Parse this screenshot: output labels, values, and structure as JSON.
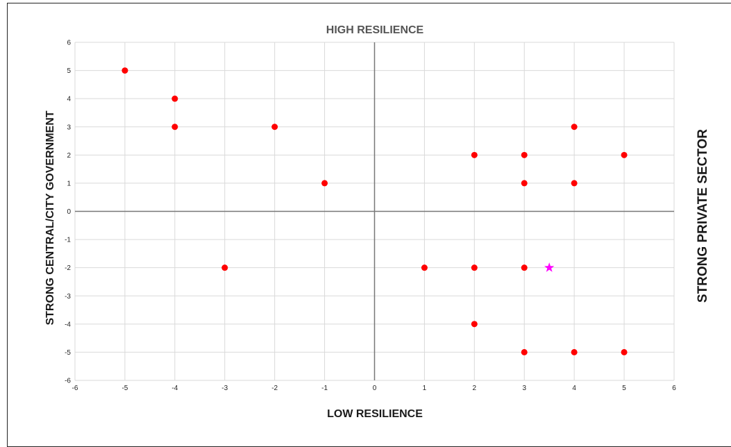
{
  "chart_data": {
    "type": "scatter",
    "title": "HIGH RESILIENCE",
    "xlabel": "LOW RESILIENCE",
    "ylabel": "STRONG CENTRAL/CITY GOVERNMENT",
    "right_label": "STRONG PRIVATE SECTOR",
    "xlim": [
      -6,
      6
    ],
    "ylim": [
      -6,
      6
    ],
    "x_ticks": [
      "-6",
      "-5",
      "-4",
      "-3",
      "-2",
      "-1",
      "0",
      "1",
      "2",
      "3",
      "4",
      "5",
      "6"
    ],
    "y_ticks": [
      "6",
      "5",
      "4",
      "3",
      "2",
      "1",
      "0",
      "-1",
      "-2",
      "-3",
      "-4",
      "-5",
      "-6"
    ],
    "grid": true,
    "series": [
      {
        "marker": "circle",
        "color": "#ff0000",
        "points": [
          {
            "x": -5,
            "y": 5
          },
          {
            "x": -4,
            "y": 4
          },
          {
            "x": -4,
            "y": 3
          },
          {
            "x": -2,
            "y": 3
          },
          {
            "x": -1,
            "y": 1
          },
          {
            "x": -3,
            "y": -2
          },
          {
            "x": 2,
            "y": 2
          },
          {
            "x": 3,
            "y": 2
          },
          {
            "x": 4,
            "y": 3
          },
          {
            "x": 5,
            "y": 2
          },
          {
            "x": 3,
            "y": 1
          },
          {
            "x": 4,
            "y": 1
          },
          {
            "x": 1,
            "y": -2
          },
          {
            "x": 2,
            "y": -2
          },
          {
            "x": 3,
            "y": -2
          },
          {
            "x": 2,
            "y": -4
          },
          {
            "x": 3,
            "y": -5
          },
          {
            "x": 4,
            "y": -5
          },
          {
            "x": 5,
            "y": -5
          }
        ]
      },
      {
        "marker": "star",
        "color": "#ff00ff",
        "points": [
          {
            "x": 3.5,
            "y": -2
          }
        ]
      }
    ]
  }
}
